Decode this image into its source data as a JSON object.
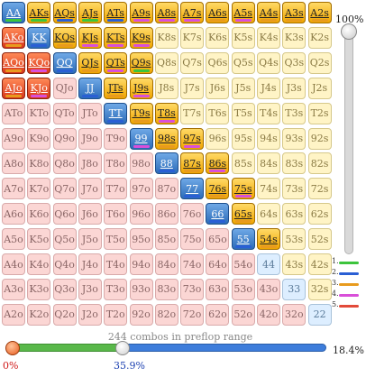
{
  "range_grid": {
    "rows": [
      [
        "AA",
        "AKs",
        "AQs",
        "AJs",
        "ATs",
        "A9s",
        "A8s",
        "A7s",
        "A6s",
        "A5s",
        "A4s",
        "A3s",
        "A2s"
      ],
      [
        "AKo",
        "KK",
        "KQs",
        "KJs",
        "KTs",
        "K9s",
        "K8s",
        "K7s",
        "K6s",
        "K5s",
        "K4s",
        "K3s",
        "K2s"
      ],
      [
        "AQo",
        "KQo",
        "QQ",
        "QJs",
        "QTs",
        "Q9s",
        "Q8s",
        "Q7s",
        "Q6s",
        "Q5s",
        "Q4s",
        "Q3s",
        "Q2s"
      ],
      [
        "AJo",
        "KJo",
        "QJo",
        "JJ",
        "JTs",
        "J9s",
        "J8s",
        "J7s",
        "J6s",
        "J5s",
        "J4s",
        "J3s",
        "J2s"
      ],
      [
        "ATo",
        "KTo",
        "QTo",
        "JTo",
        "TT",
        "T9s",
        "T8s",
        "T7s",
        "T6s",
        "T5s",
        "T4s",
        "T3s",
        "T2s"
      ],
      [
        "A9o",
        "K9o",
        "Q9o",
        "J9o",
        "T9o",
        "99",
        "98s",
        "97s",
        "96s",
        "95s",
        "94s",
        "93s",
        "92s"
      ],
      [
        "A8o",
        "K8o",
        "Q8o",
        "J8o",
        "T8o",
        "98o",
        "88",
        "87s",
        "86s",
        "85s",
        "84s",
        "83s",
        "82s"
      ],
      [
        "A7o",
        "K7o",
        "Q7o",
        "J7o",
        "T7o",
        "97o",
        "87o",
        "77",
        "76s",
        "75s",
        "74s",
        "73s",
        "72s"
      ],
      [
        "A6o",
        "K6o",
        "Q6o",
        "J6o",
        "T6o",
        "96o",
        "86o",
        "76o",
        "66",
        "65s",
        "64s",
        "63s",
        "62s"
      ],
      [
        "A5o",
        "K5o",
        "Q5o",
        "J5o",
        "T5o",
        "95o",
        "85o",
        "75o",
        "65o",
        "55",
        "54s",
        "53s",
        "52s"
      ],
      [
        "A4o",
        "K4o",
        "Q4o",
        "J4o",
        "T4o",
        "94o",
        "84o",
        "74o",
        "64o",
        "54o",
        "44",
        "43s",
        "42s"
      ],
      [
        "A3o",
        "K3o",
        "Q3o",
        "J3o",
        "T3o",
        "93o",
        "83o",
        "73o",
        "63o",
        "53o",
        "43o",
        "33",
        "32s"
      ],
      [
        "A2o",
        "K2o",
        "Q2o",
        "J2o",
        "T2o",
        "92o",
        "82o",
        "72o",
        "62o",
        "52o",
        "42o",
        "32o",
        "22"
      ]
    ],
    "selected": [
      "AA",
      "AKs",
      "AQs",
      "AJs",
      "ATs",
      "A9s",
      "A8s",
      "A7s",
      "A6s",
      "A5s",
      "A4s",
      "A3s",
      "A2s",
      "AKo",
      "KK",
      "KQs",
      "KJs",
      "KTs",
      "K9s",
      "AQo",
      "KQo",
      "QQ",
      "QJs",
      "QTs",
      "Q9s",
      "AJo",
      "KJo",
      "JJ",
      "JTs",
      "J9s",
      "TT",
      "T9s",
      "T8s",
      "99",
      "98s",
      "97s",
      "88",
      "87s",
      "86s",
      "77",
      "76s",
      "75s",
      "66",
      "65s",
      "55",
      "54s"
    ],
    "markers": {
      "AA": 1,
      "AKs": 1,
      "AQs": 2,
      "AJs": 1,
      "ATs": 2,
      "A9s": 4,
      "A8s": 4,
      "A7s": 4,
      "A6s": 3,
      "A5s": 4,
      "A4s": 3,
      "A3s": 3,
      "A2s": 3,
      "AKo": 3,
      "KK": 2,
      "KQs": 3,
      "KJs": 4,
      "KTs": 4,
      "K9s": 4,
      "AQo": 3,
      "KQo": 4,
      "QQ": 2,
      "QJs": 3,
      "QTs": 4,
      "Q9s": 1,
      "AJo": 3,
      "KJo": 4,
      "JJ": 2,
      "JTs": 3,
      "J9s": 4,
      "TT": 2,
      "T9s": 3,
      "T8s": 4,
      "99": 4,
      "98s": 3,
      "97s": 4,
      "88": 2,
      "87s": 3,
      "86s": 4,
      "77": 2,
      "76s": 3,
      "75s": 4,
      "66": 2,
      "65s": 3,
      "55": 2,
      "54s": 3
    }
  },
  "marker_colors": {
    "1": "#3cc43c",
    "2": "#2a5fd4",
    "3": "#e89b1e",
    "4": "#d94fd9",
    "5": "#e24a3a"
  },
  "legend": [
    {
      "num": "1.",
      "color": "#3cc43c"
    },
    {
      "num": "2.",
      "color": "#2a5fd4"
    },
    {
      "num": "3.",
      "color": "#e89b1e"
    },
    {
      "num": "4.",
      "color": "#d94fd9"
    },
    {
      "num": "5.",
      "color": "#e24a3a"
    }
  ],
  "vertical_slider": {
    "label": "100%",
    "value": 1.0
  },
  "horizontal_slider": {
    "combos_text": "244 combos in preflop range",
    "percent_text": "18.4%",
    "low_label": "0%",
    "high_label": "35.9%",
    "low_value": 0.0,
    "high_value": 0.359
  },
  "colors": {
    "track_fill": "#59b84a",
    "track_rest": "#3d7ddb",
    "low_label": "#d01a1a",
    "high_label": "#1a3fb0"
  }
}
